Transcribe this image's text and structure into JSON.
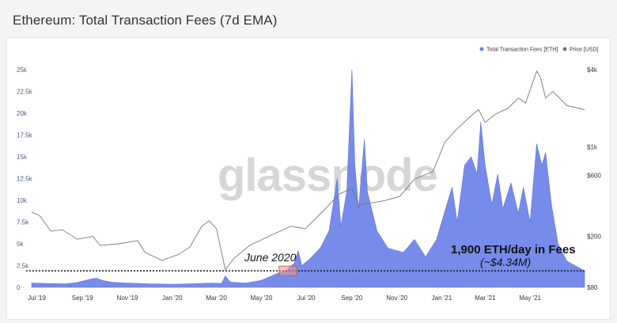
{
  "title": "Ethereum: Total Transaction Fees (7d EMA)",
  "watermark": "glassnode",
  "colors": {
    "fees": "#6b82e8",
    "price": "#777777",
    "highlight": "#e89a9a"
  },
  "legend": [
    {
      "label": "Total Transaction Fees [ETH]",
      "color": "#6b82e8"
    },
    {
      "label": "Price [USD]",
      "color": "#777777"
    }
  ],
  "annotations": {
    "june": "June 2020",
    "fees_line": "1,900 ETH/day in Fees",
    "usd_line": "(~$4.34M)"
  },
  "chart_data": {
    "type": "area",
    "x_range": [
      "2019-06-24",
      "2021-07-14"
    ],
    "xticks": [
      "Jul '19",
      "Sep '19",
      "Nov '19",
      "Jan '20",
      "Mar '20",
      "May '20",
      "Jul '20",
      "Sep '20",
      "Nov '20",
      "Jan '21",
      "Mar '21",
      "May '21"
    ],
    "yticks_left": [
      "0",
      "2.5k",
      "5k",
      "7.5k",
      "10k",
      "12.5k",
      "15k",
      "17.5k",
      "20k",
      "22.5k",
      "25k"
    ],
    "yticks_right": [
      "$80",
      "$200",
      "$600",
      "$1k",
      "$4k"
    ],
    "ylim_left": [
      0,
      25000
    ],
    "price_scale": "log",
    "reference_line_value": 1900,
    "series": [
      {
        "name": "Total Transaction Fees [ETH]",
        "axis": "left",
        "points": [
          [
            "2019-06-24",
            500
          ],
          [
            "2019-07-15",
            450
          ],
          [
            "2019-08-10",
            400
          ],
          [
            "2019-08-25",
            550
          ],
          [
            "2019-09-10",
            900
          ],
          [
            "2019-09-20",
            1050
          ],
          [
            "2019-09-28",
            800
          ],
          [
            "2019-10-10",
            600
          ],
          [
            "2019-11-01",
            500
          ],
          [
            "2019-12-01",
            400
          ],
          [
            "2020-01-01",
            350
          ],
          [
            "2020-02-01",
            420
          ],
          [
            "2020-02-25",
            500
          ],
          [
            "2020-03-08",
            450
          ],
          [
            "2020-03-13",
            1300
          ],
          [
            "2020-03-20",
            600
          ],
          [
            "2020-04-10",
            500
          ],
          [
            "2020-05-01",
            800
          ],
          [
            "2020-05-20",
            1500
          ],
          [
            "2020-06-05",
            2000
          ],
          [
            "2020-06-15",
            2800
          ],
          [
            "2020-06-20",
            4200
          ],
          [
            "2020-06-25",
            2500
          ],
          [
            "2020-07-05",
            3200
          ],
          [
            "2020-07-20",
            4500
          ],
          [
            "2020-08-01",
            6500
          ],
          [
            "2020-08-12",
            12500
          ],
          [
            "2020-08-17",
            7000
          ],
          [
            "2020-08-25",
            11000
          ],
          [
            "2020-09-01",
            25000
          ],
          [
            "2020-09-05",
            14000
          ],
          [
            "2020-09-10",
            9000
          ],
          [
            "2020-09-18",
            17000
          ],
          [
            "2020-09-22",
            11000
          ],
          [
            "2020-10-05",
            6500
          ],
          [
            "2020-10-20",
            4500
          ],
          [
            "2020-11-10",
            4000
          ],
          [
            "2020-11-25",
            5500
          ],
          [
            "2020-12-10",
            3500
          ],
          [
            "2020-12-25",
            5500
          ],
          [
            "2021-01-08",
            9500
          ],
          [
            "2021-01-15",
            11500
          ],
          [
            "2021-01-22",
            7500
          ],
          [
            "2021-02-01",
            14000
          ],
          [
            "2021-02-10",
            15000
          ],
          [
            "2021-02-18",
            13000
          ],
          [
            "2021-02-23",
            19000
          ],
          [
            "2021-03-01",
            14000
          ],
          [
            "2021-03-10",
            9500
          ],
          [
            "2021-03-18",
            13000
          ],
          [
            "2021-03-25",
            9000
          ],
          [
            "2021-04-05",
            12000
          ],
          [
            "2021-04-15",
            8500
          ],
          [
            "2021-04-22",
            11500
          ],
          [
            "2021-05-01",
            7500
          ],
          [
            "2021-05-10",
            16500
          ],
          [
            "2021-05-17",
            14000
          ],
          [
            "2021-05-22",
            15500
          ],
          [
            "2021-05-30",
            9500
          ],
          [
            "2021-06-08",
            5000
          ],
          [
            "2021-06-20",
            3000
          ],
          [
            "2021-07-14",
            1900
          ]
        ]
      },
      {
        "name": "Price [USD]",
        "axis": "right",
        "points": [
          [
            "2019-06-24",
            310
          ],
          [
            "2019-07-05",
            290
          ],
          [
            "2019-07-20",
            220
          ],
          [
            "2019-08-05",
            225
          ],
          [
            "2019-08-25",
            190
          ],
          [
            "2019-09-15",
            200
          ],
          [
            "2019-09-25",
            170
          ],
          [
            "2019-10-20",
            175
          ],
          [
            "2019-11-15",
            185
          ],
          [
            "2019-11-25",
            150
          ],
          [
            "2019-12-18",
            130
          ],
          [
            "2020-01-10",
            145
          ],
          [
            "2020-01-25",
            165
          ],
          [
            "2020-02-10",
            240
          ],
          [
            "2020-02-20",
            265
          ],
          [
            "2020-03-01",
            230
          ],
          [
            "2020-03-13",
            110
          ],
          [
            "2020-03-25",
            135
          ],
          [
            "2020-04-15",
            170
          ],
          [
            "2020-05-15",
            205
          ],
          [
            "2020-06-10",
            240
          ],
          [
            "2020-06-30",
            230
          ],
          [
            "2020-07-25",
            320
          ],
          [
            "2020-08-15",
            430
          ],
          [
            "2020-09-01",
            470
          ],
          [
            "2020-09-10",
            350
          ],
          [
            "2020-10-15",
            380
          ],
          [
            "2020-11-05",
            410
          ],
          [
            "2020-11-25",
            560
          ],
          [
            "2020-12-20",
            640
          ],
          [
            "2021-01-05",
            1080
          ],
          [
            "2021-01-20",
            1350
          ],
          [
            "2021-02-10",
            1750
          ],
          [
            "2021-02-20",
            1950
          ],
          [
            "2021-03-01",
            1550
          ],
          [
            "2021-03-15",
            1800
          ],
          [
            "2021-04-01",
            2000
          ],
          [
            "2021-04-15",
            2400
          ],
          [
            "2021-04-25",
            2200
          ],
          [
            "2021-05-10",
            3900
          ],
          [
            "2021-05-15",
            3500
          ],
          [
            "2021-05-22",
            2400
          ],
          [
            "2021-06-01",
            2700
          ],
          [
            "2021-06-20",
            2100
          ],
          [
            "2021-07-14",
            1950
          ]
        ]
      }
    ]
  }
}
